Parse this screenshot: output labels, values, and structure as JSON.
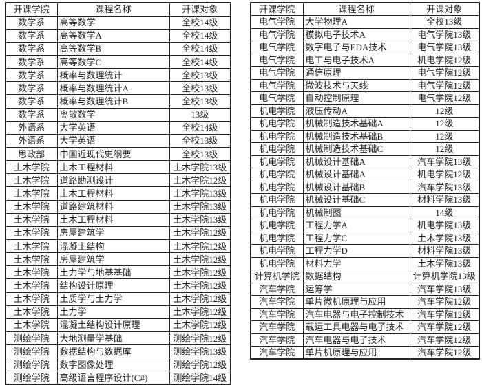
{
  "headers": [
    "开课学院",
    "课程名称",
    "开课对象"
  ],
  "left_table": [
    [
      "数学系",
      "高等数学",
      "全校14级"
    ],
    [
      "数学系",
      "高等数学A",
      "全校14级"
    ],
    [
      "数学系",
      "高等数学B",
      "全校14级"
    ],
    [
      "数学系",
      "高等数学C",
      "全校14级"
    ],
    [
      "数学系",
      "概率与数理统计",
      "全校13级"
    ],
    [
      "数学系",
      "概率与数理统计A",
      "全校13级"
    ],
    [
      "数学系",
      "概率与数理统计B",
      "全校13级"
    ],
    [
      "数学系",
      "离散数学",
      "13级"
    ],
    [
      "外语系",
      "大学英语",
      "全校14级"
    ],
    [
      "外语系",
      "大学英语",
      "全校13级"
    ],
    [
      "思政部",
      "中国近现代史纲要",
      "全校13级"
    ],
    [
      "土木学院",
      "土木工程材料",
      "土木学院13级"
    ],
    [
      "土木学院",
      "道路勘测设计",
      "土木学院12级"
    ],
    [
      "土木学院",
      "土木工程材料",
      "土木学院13级"
    ],
    [
      "土木学院",
      "道路建筑材料",
      "土木学院13级"
    ],
    [
      "土木学院",
      "土木工程材料",
      "土木学院13级"
    ],
    [
      "土木学院",
      "房屋建筑学",
      "土木学院12级"
    ],
    [
      "土木学院",
      "混凝土结构",
      "土木学院12级"
    ],
    [
      "土木学院",
      "房屋建筑学",
      "土木学院12级"
    ],
    [
      "土木学院",
      "土力学与地基基础",
      "土木学院12级"
    ],
    [
      "土木学院",
      "结构设计原理",
      "土木学院12级"
    ],
    [
      "土木学院",
      "土质学与土力学",
      "土木学院12级"
    ],
    [
      "土木学院",
      "土力学",
      "土木学院12级"
    ],
    [
      "土木学院",
      "混凝土结构设计原理",
      "土木学院12级"
    ],
    [
      "测绘学院",
      "大地测量学基础",
      "测绘学院12级"
    ],
    [
      "测绘学院",
      "数据结构与数据库",
      "测绘学院13级"
    ],
    [
      "测绘学院",
      "数字图像处理",
      "测绘学院12级"
    ],
    [
      "测绘学院",
      "高级语言程序设计(C#)",
      "测绘学院14级"
    ]
  ],
  "right_table": [
    [
      "电气学院",
      "大学物理A",
      "全校13级"
    ],
    [
      "电气学院",
      "模拟电子技术A",
      "电气学院13级"
    ],
    [
      "电气学院",
      "数字电子与EDA技术",
      "电气学院13级"
    ],
    [
      "电气学院",
      "电工与电子技术A",
      "机电学院12级"
    ],
    [
      "电气学院",
      "通信原理",
      "电气学院12级"
    ],
    [
      "电气学院",
      "微波技术与天线",
      "电气学院12级"
    ],
    [
      "电气学院",
      "自动控制原理",
      "电气学院12级"
    ],
    [
      "机电学院",
      "液压传动A",
      "12级"
    ],
    [
      "机电学院",
      "机械制造技术基础A",
      "12级"
    ],
    [
      "机电学院",
      "机械制造技术基础B",
      "12级"
    ],
    [
      "机电学院",
      "机械制造技术基础C",
      "12级"
    ],
    [
      "机电学院",
      "机械设计基础A",
      "汽车学院13级"
    ],
    [
      "机电学院",
      "机械设计基础A",
      "机电学院12级"
    ],
    [
      "机电学院",
      "机械设计基础B",
      "汽车学院13级"
    ],
    [
      "机电学院",
      "机械设计基础C",
      "材料学院13级"
    ],
    [
      "机电学院",
      "机械制图",
      "14级"
    ],
    [
      "机电学院",
      "工程力学A",
      "机电学院13级"
    ],
    [
      "机电学院",
      "工程力学C",
      "土木学院13级"
    ],
    [
      "机电学院",
      "工程力学D",
      "材料学院13级"
    ],
    [
      "机电学院",
      "材料力学",
      "土木学院13级"
    ],
    [
      "计算机学院",
      "数据结构",
      "计算机学院13级"
    ],
    [
      "汽车学院",
      "运筹学",
      "汽车学院13级"
    ],
    [
      "汽车学院",
      "单片微机原理与应用",
      "汽车学院12级"
    ],
    [
      "汽车学院",
      "汽车电器与电子控制技术",
      "汽车学院12级"
    ],
    [
      "汽车学院",
      "载运工具电器与电子技术",
      "汽车学院12级"
    ],
    [
      "汽车学院",
      "汽车电器与电子技术",
      "汽车学院12级"
    ],
    [
      "汽车学院",
      "单片机原理与应用",
      "汽车学院12级"
    ]
  ]
}
